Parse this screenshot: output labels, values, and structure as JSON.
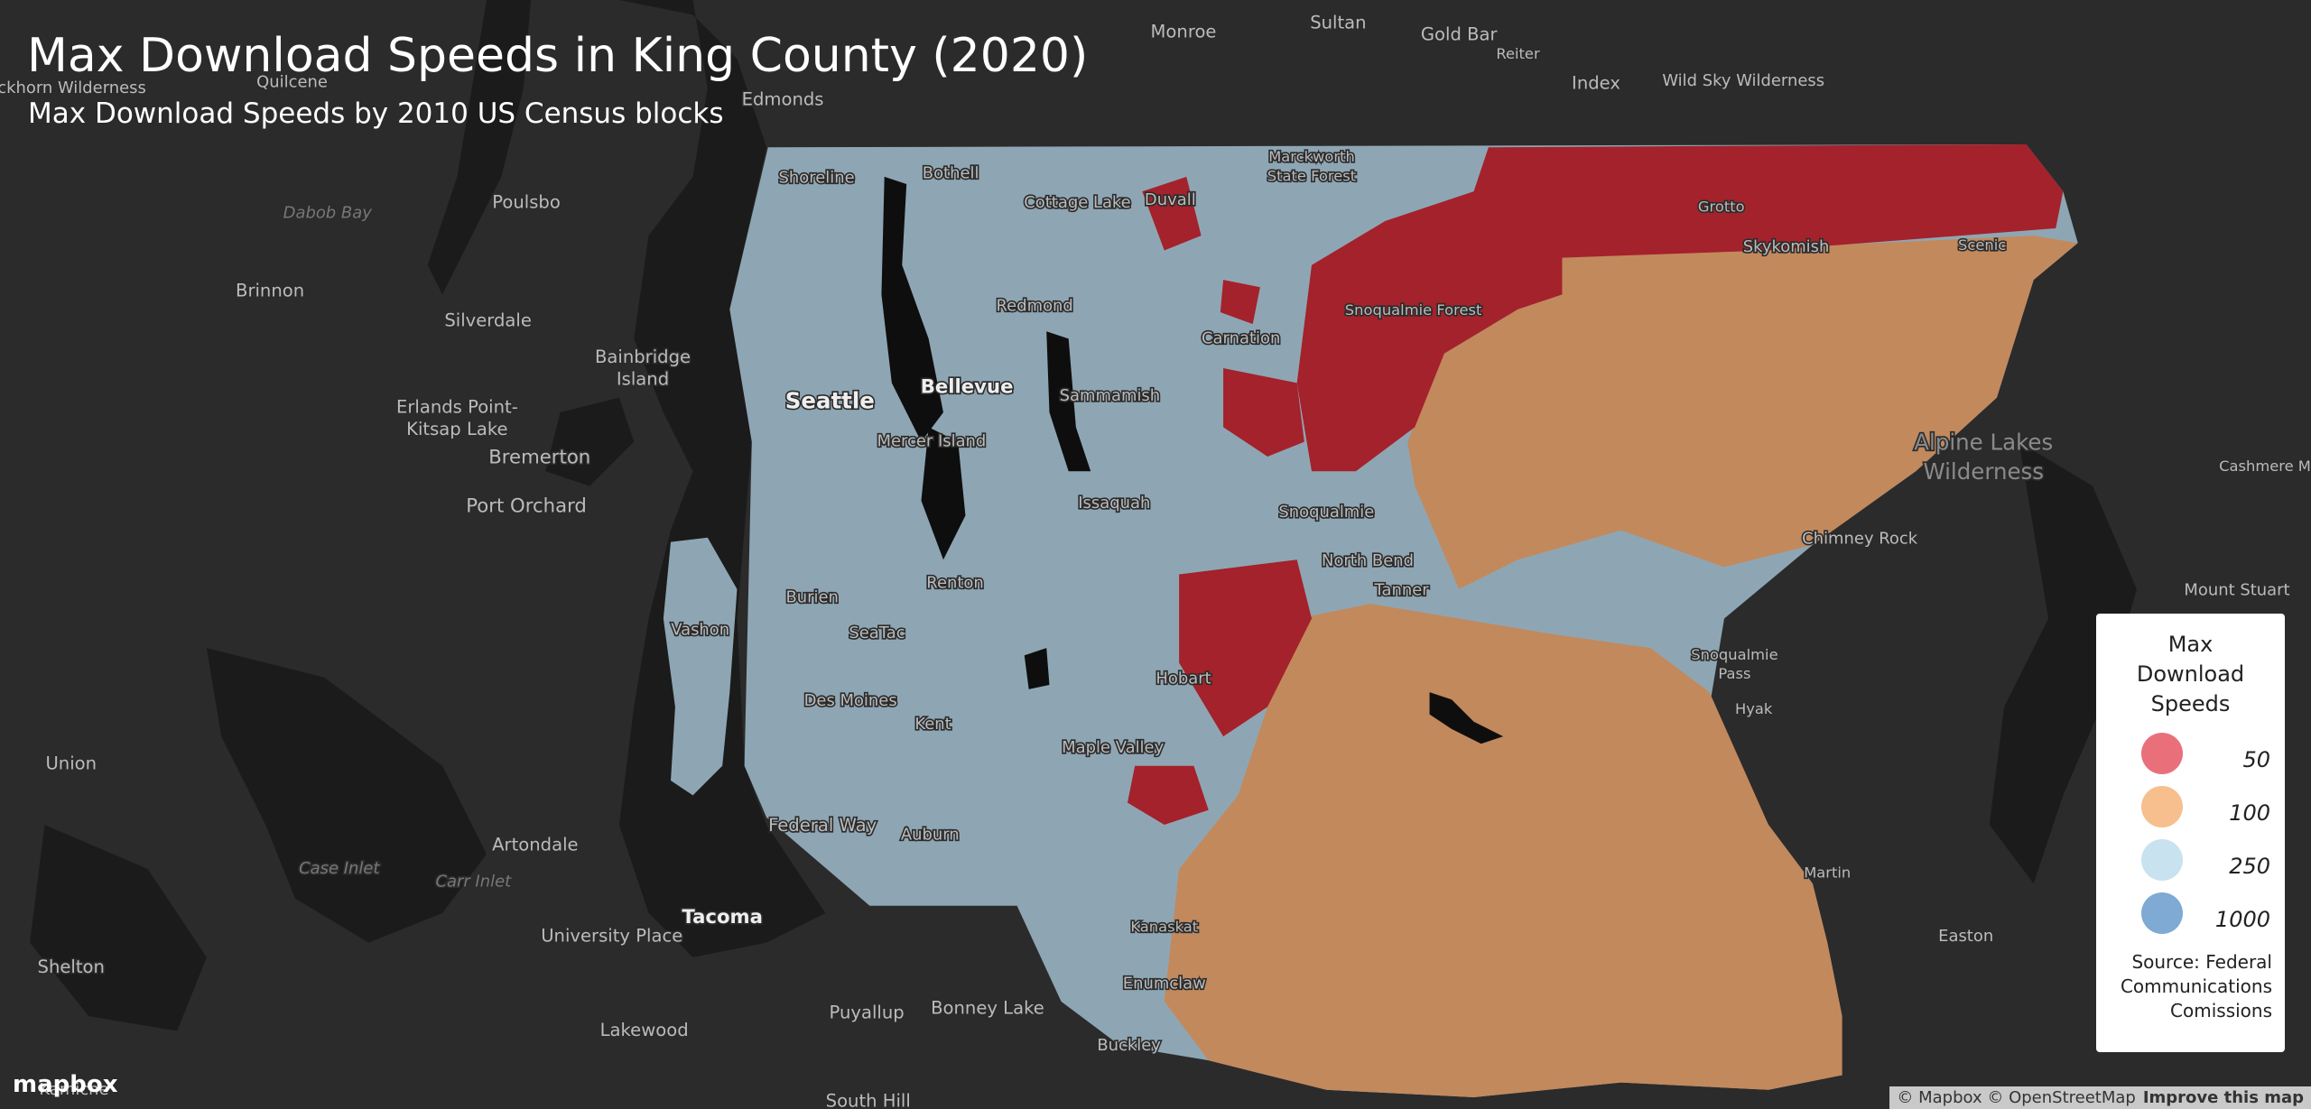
{
  "header": {
    "title": "Max Download Speeds in King County (2020)",
    "subtitle": "Max Download Speeds by 2010 US Census blocks"
  },
  "legend": {
    "title": "Max Download Speeds",
    "items": [
      {
        "value": 50,
        "color": "#e9707b"
      },
      {
        "value": 100,
        "color": "#f6bf8d"
      },
      {
        "value": 250,
        "color": "#c9e2f0"
      },
      {
        "value": 1000,
        "color": "#7eaad3"
      }
    ],
    "source": "Source: Federal Communications Comissions"
  },
  "map": {
    "labels": [
      "Monroe",
      "Sultan",
      "Gold Bar",
      "Reiter",
      "Index",
      "Wild Sky Wilderness",
      "Quilcene",
      "uckhorn Wilderness",
      "Edmonds",
      "Poulsbo",
      "Dabob Bay",
      "Brinnon",
      "Silverdale",
      "Bainbridge",
      "Island",
      "Erlands Point-",
      "Kitsap Lake",
      "Bremerton",
      "Port Orchard",
      "Seattle",
      "Bellevue",
      "Shoreline",
      "Bothell",
      "Cottage Lake",
      "Duvall",
      "Marckworth",
      "State Forest",
      "Redmond",
      "Carnation",
      "Snoqualmie Forest",
      "Grotto",
      "Skykomish",
      "Scenic",
      "Sammamish",
      "Mercer Island",
      "Issaquah",
      "Snoqualmie",
      "North Bend",
      "Tanner",
      "Alpine Lakes",
      "Wilderness",
      "Cashmere M",
      "Chimney Rock",
      "Mount Stuart",
      "Renton",
      "Burien",
      "Vashon",
      "SeaTac",
      "Snoqualmie",
      "Pass",
      "Hyak",
      "Des Moines",
      "Kent",
      "Hobart",
      "Maple Valley",
      "Union",
      "Federal Way",
      "Auburn",
      "Artondale",
      "Case Inlet",
      "Carr Inlet",
      "Martin",
      "Tacoma",
      "University Place",
      "Kanaskat",
      "Enumclaw",
      "Easton",
      "Shelton",
      "Puyallup",
      "Bonney Lake",
      "Lakewood",
      "Buckley",
      "South Hill",
      "Kamiche"
    ],
    "logo": "mapbox",
    "attribution": "© Mapbox © OpenStreetMap",
    "improve": "Improve this map"
  }
}
